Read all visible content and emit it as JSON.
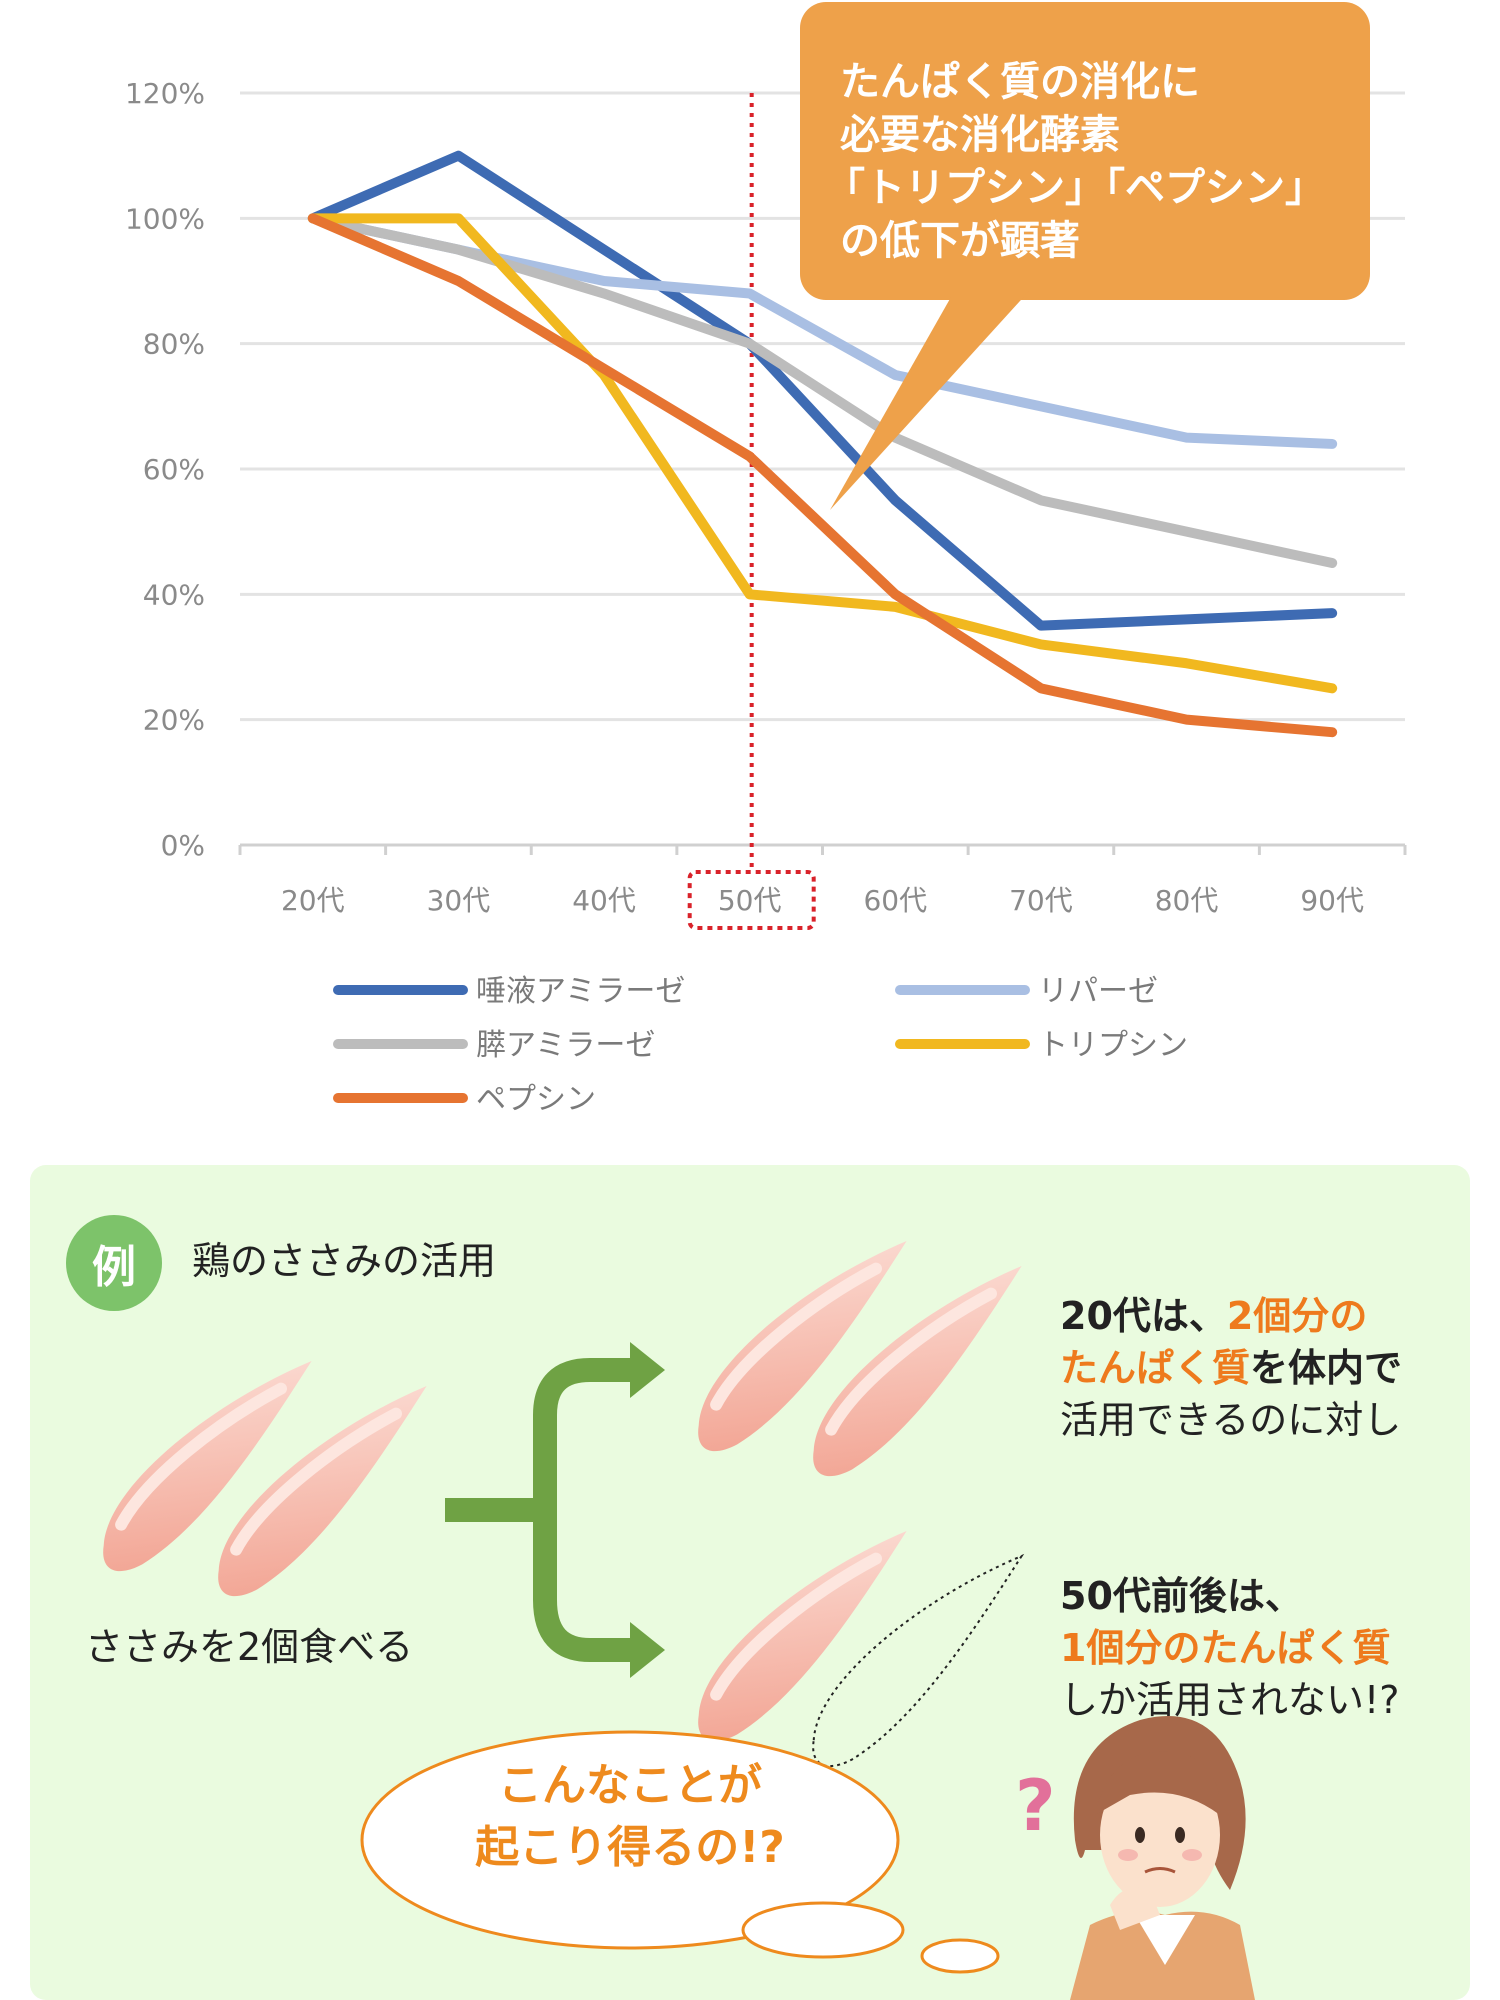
{
  "chart_data": {
    "type": "line",
    "categories": [
      "20代",
      "30代",
      "40代",
      "50代",
      "60代",
      "70代",
      "80代",
      "90代"
    ],
    "y_ticks": [
      "0%",
      "20%",
      "40%",
      "60%",
      "80%",
      "100%",
      "120%"
    ],
    "ylim": [
      0,
      120
    ],
    "grid": true,
    "legend_position": "bottom",
    "highlight_category": "50代",
    "series": [
      {
        "name": "唾液アミラーゼ",
        "color": "#3e6bb3",
        "values": [
          100,
          110,
          95,
          80,
          55,
          35,
          36,
          37
        ]
      },
      {
        "name": "リパーゼ",
        "color": "#a9bfe3",
        "values": [
          100,
          95,
          90,
          88,
          75,
          70,
          65,
          64
        ]
      },
      {
        "name": "膵アミラーゼ",
        "color": "#bcbcbc",
        "values": [
          100,
          95,
          88,
          80,
          65,
          55,
          50,
          45
        ]
      },
      {
        "name": "トリプシン",
        "color": "#f1b81f",
        "values": [
          100,
          100,
          75,
          40,
          38,
          32,
          29,
          25
        ]
      },
      {
        "name": "ペプシン",
        "color": "#e67431",
        "values": [
          100,
          90,
          76,
          62,
          40,
          25,
          20,
          18
        ]
      }
    ],
    "callout_lines": [
      "たんぱく質の消化に",
      "必要な消化酵素",
      "「トリプシン」「ペプシン」",
      "の低下が顕著"
    ],
    "callout_color": "#eea14a"
  },
  "example": {
    "badge": "例",
    "title": "鶏のささみの活用",
    "eat_label": "ささみを2個食べる",
    "result_20s": {
      "line1_a": "20代",
      "line1_b": "は、",
      "line1_c": "2個分の",
      "line2_a": "たんぱく質",
      "line2_b": "を体内で",
      "line3": "活用できるのに対し"
    },
    "result_50s": {
      "line1": "50代前後は、",
      "line2": "1個分のたんぱく質",
      "line3": "しか活用されない!?"
    },
    "thought_line1": "こんなことが",
    "thought_line2": "起こり得るの!?",
    "question_mark": "?",
    "arrow_color": "#6fa244",
    "accent_color": "#ee7a1d"
  }
}
